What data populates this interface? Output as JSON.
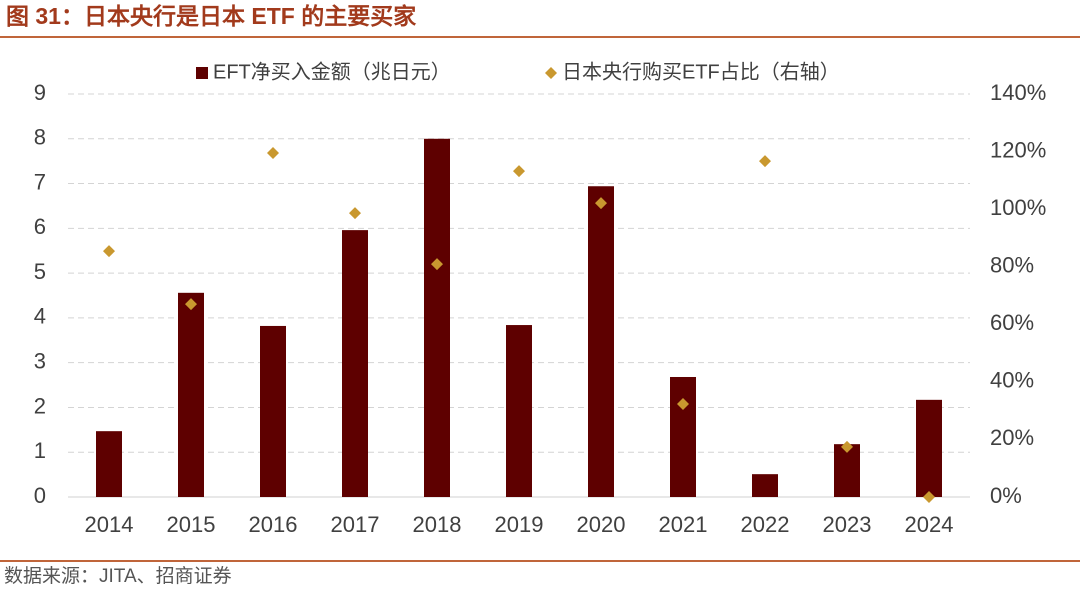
{
  "chart_data": {
    "type": "bar",
    "title": "图 31：日本央行是日本 ETF 的主要买家",
    "source": "数据来源：JITA、招商证券",
    "categories": [
      "2014",
      "2015",
      "2016",
      "2017",
      "2018",
      "2019",
      "2020",
      "2021",
      "2022",
      "2023",
      "2024"
    ],
    "series": [
      {
        "name": "EFT净买入金额（兆日元）",
        "type": "bar",
        "color": "#5e0000",
        "values": [
          1.47,
          4.56,
          3.82,
          5.96,
          8.0,
          3.84,
          6.94,
          2.68,
          0.51,
          1.18,
          2.17
        ]
      },
      {
        "name": "日本央行购买ETF占比（右轴）",
        "type": "scatter",
        "axis": "y2",
        "color": "#c9982f",
        "values": [
          85.4,
          67,
          119.5,
          98.6,
          80.9,
          113.2,
          102.1,
          32.3,
          116.7,
          17.4,
          0
        ]
      }
    ],
    "ylim": [
      0,
      9
    ],
    "yticks": [
      0,
      1,
      2,
      3,
      4,
      5,
      6,
      7,
      8,
      9
    ],
    "y2lim": [
      0,
      140
    ],
    "y2ticks": [
      {
        "value": 0,
        "label": "0%"
      },
      {
        "value": 20,
        "label": "20%"
      },
      {
        "value": 40,
        "label": "40%"
      },
      {
        "value": 60,
        "label": "60%"
      },
      {
        "value": 80,
        "label": "80%"
      },
      {
        "value": 100,
        "label": "100%"
      },
      {
        "value": 120,
        "label": "120%"
      },
      {
        "value": 140,
        "label": "140%"
      }
    ],
    "grid": true,
    "legend": "top"
  }
}
